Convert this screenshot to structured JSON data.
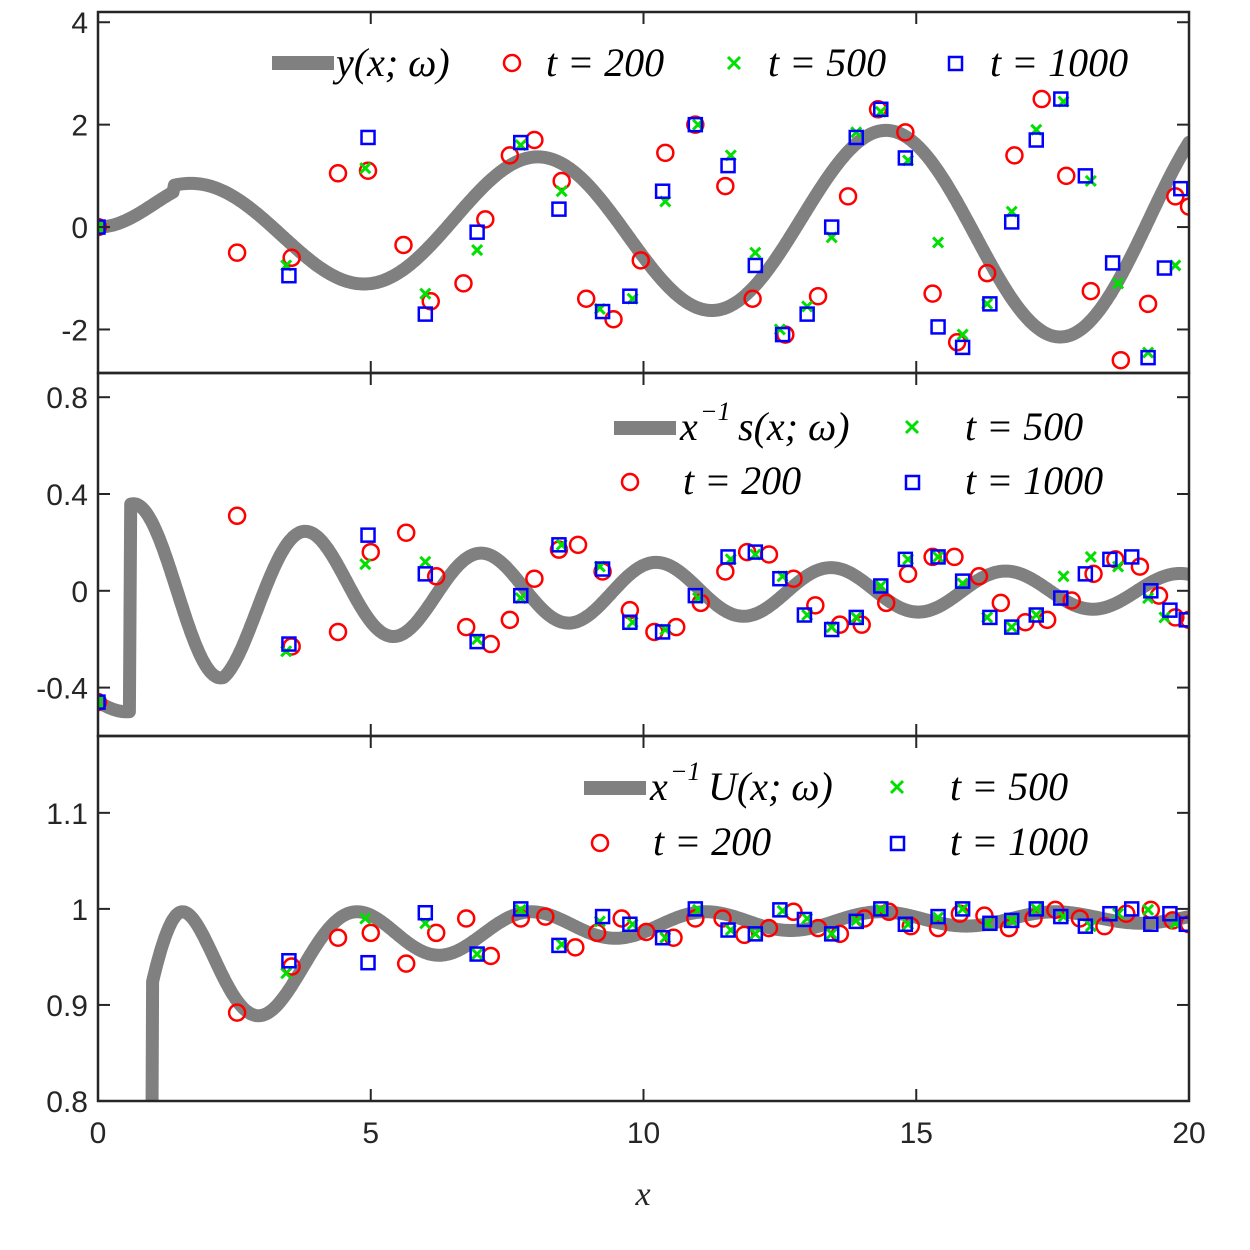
{
  "chart_data": [
    {
      "type": "line",
      "id": "top",
      "series": [
        {
          "name": "y(x;ω)",
          "kind": "line",
          "color": "#808080"
        },
        {
          "name": "t = 200",
          "kind": "circle",
          "color": "#ff0000",
          "x": [
            0,
            2.55,
            3.55,
            4.4,
            4.95,
            5.6,
            6.1,
            6.7,
            7.1,
            7.55,
            8.0,
            8.5,
            8.95,
            9.45,
            9.95,
            10.4,
            10.95,
            11.5,
            12.0,
            12.6,
            13.2,
            13.75,
            14.3,
            14.8,
            15.3,
            15.75,
            16.3,
            16.8,
            17.3,
            17.75,
            18.2,
            18.75,
            19.25,
            19.75,
            20.0
          ],
          "y": [
            0,
            -0.5,
            -0.6,
            1.05,
            1.1,
            -0.35,
            -1.45,
            -1.1,
            0.15,
            1.4,
            1.7,
            0.9,
            -1.4,
            -1.8,
            -0.65,
            1.45,
            2.0,
            0.8,
            -1.4,
            -2.1,
            -1.35,
            0.6,
            2.3,
            1.85,
            -1.3,
            -2.25,
            -0.9,
            1.4,
            2.5,
            1.0,
            -1.25,
            -2.6,
            -1.5,
            0.6,
            0.4
          ]
        },
        {
          "name": "t = 500",
          "kind": "x",
          "color": "#00e000",
          "x": [
            0,
            3.45,
            4.9,
            6.0,
            6.95,
            7.75,
            8.5,
            9.2,
            9.8,
            10.4,
            11.0,
            11.6,
            12.05,
            12.5,
            13.0,
            13.45,
            13.9,
            14.35,
            14.85,
            15.4,
            15.85,
            16.3,
            16.75,
            17.2,
            17.7,
            18.2,
            18.7,
            19.25,
            19.75
          ],
          "y": [
            0,
            -0.75,
            1.15,
            -1.3,
            -0.45,
            1.6,
            0.7,
            -1.6,
            -1.4,
            0.5,
            2.0,
            1.4,
            -0.5,
            -2.0,
            -1.55,
            -0.2,
            1.85,
            2.25,
            1.3,
            -0.3,
            -2.1,
            -1.5,
            0.3,
            1.9,
            2.45,
            0.9,
            -1.1,
            -2.45,
            -0.75
          ]
        },
        {
          "name": "t = 1000",
          "kind": "square",
          "color": "#0000ff",
          "x": [
            0,
            3.5,
            4.95,
            6.0,
            6.95,
            7.75,
            8.45,
            9.25,
            9.75,
            10.35,
            10.95,
            11.55,
            12.05,
            12.55,
            13.0,
            13.45,
            13.9,
            14.35,
            14.8,
            15.4,
            15.85,
            16.35,
            16.75,
            17.2,
            17.65,
            18.1,
            18.6,
            19.25,
            19.55,
            19.85
          ],
          "y": [
            0,
            -0.95,
            1.75,
            -1.7,
            -0.1,
            1.65,
            0.35,
            -1.65,
            -1.35,
            0.7,
            2.0,
            1.2,
            -0.75,
            -2.1,
            -1.7,
            0.0,
            1.75,
            2.3,
            1.35,
            -1.95,
            -2.35,
            -1.5,
            0.1,
            1.7,
            2.5,
            1.0,
            -0.7,
            -2.55,
            -0.8,
            0.75
          ]
        }
      ],
      "xlim": [
        0,
        20
      ],
      "ylim": [
        -2.85,
        4.2
      ],
      "yticks": [
        -2,
        0,
        2,
        4
      ],
      "ytick_labels": [
        "-2",
        "0",
        "2",
        "4"
      ],
      "legend": [
        "y(x;ω)",
        "t = 200",
        "t = 500",
        "t = 1000"
      ],
      "legend_location": "top-right"
    },
    {
      "type": "line",
      "id": "mid",
      "series": [
        {
          "name": "x⁻¹s(x;ω)",
          "kind": "line",
          "color": "#808080"
        },
        {
          "name": "t = 200",
          "kind": "circle",
          "color": "#ff0000",
          "x": [
            0,
            2.55,
            3.55,
            4.4,
            5.0,
            5.65,
            6.2,
            6.75,
            7.2,
            7.55,
            8.0,
            8.45,
            8.8,
            9.25,
            9.75,
            10.2,
            10.6,
            11.05,
            11.5,
            11.9,
            12.3,
            12.75,
            13.15,
            13.6,
            14.0,
            14.45,
            14.85,
            15.3,
            15.7,
            16.15,
            16.55,
            17.0,
            17.4,
            17.85,
            18.25,
            18.65,
            19.1,
            19.45,
            19.75,
            20.0
          ],
          "y": [
            -0.46,
            0.31,
            -0.23,
            -0.17,
            0.16,
            0.24,
            0.06,
            -0.15,
            -0.22,
            -0.12,
            0.05,
            0.17,
            0.19,
            0.08,
            -0.08,
            -0.17,
            -0.15,
            -0.05,
            0.08,
            0.16,
            0.15,
            0.05,
            -0.06,
            -0.14,
            -0.14,
            -0.05,
            0.07,
            0.14,
            0.14,
            0.06,
            -0.05,
            -0.13,
            -0.12,
            -0.04,
            0.07,
            0.13,
            0.1,
            -0.02,
            -0.11,
            -0.12
          ]
        },
        {
          "name": "t = 500",
          "kind": "x",
          "color": "#00e000",
          "x": [
            0,
            3.45,
            4.9,
            6.0,
            6.95,
            7.75,
            8.5,
            9.2,
            9.8,
            10.4,
            11.0,
            11.6,
            12.05,
            12.55,
            13.0,
            13.45,
            13.9,
            14.35,
            14.85,
            15.4,
            15.85,
            16.3,
            16.75,
            17.2,
            17.7,
            18.2,
            18.7,
            19.25,
            19.55
          ],
          "y": [
            -0.46,
            -0.25,
            0.11,
            0.12,
            -0.2,
            -0.03,
            0.19,
            0.1,
            -0.13,
            -0.16,
            -0.03,
            0.13,
            0.15,
            0.06,
            -0.1,
            -0.15,
            -0.11,
            0.02,
            0.13,
            0.14,
            0.03,
            -0.11,
            -0.15,
            -0.1,
            0.06,
            0.14,
            0.1,
            -0.03,
            -0.11
          ]
        },
        {
          "name": "t = 1000",
          "kind": "square",
          "color": "#0000ff",
          "x": [
            0,
            3.5,
            4.95,
            6.0,
            6.95,
            7.75,
            8.45,
            9.25,
            9.75,
            10.35,
            10.95,
            11.55,
            12.05,
            12.5,
            12.95,
            13.45,
            13.9,
            14.35,
            14.8,
            15.4,
            15.85,
            16.35,
            16.75,
            17.2,
            17.65,
            18.1,
            18.55,
            18.95,
            19.3,
            19.65,
            19.95
          ],
          "y": [
            -0.46,
            -0.22,
            0.23,
            0.07,
            -0.21,
            -0.02,
            0.19,
            0.09,
            -0.13,
            -0.17,
            -0.02,
            0.14,
            0.16,
            0.05,
            -0.1,
            -0.16,
            -0.11,
            0.02,
            0.13,
            0.14,
            0.04,
            -0.11,
            -0.15,
            -0.1,
            -0.03,
            0.07,
            0.13,
            0.14,
            0.0,
            -0.08,
            -0.12
          ]
        }
      ],
      "xlim": [
        0,
        20
      ],
      "ylim": [
        -0.6,
        0.9
      ],
      "yticks": [
        -0.4,
        0,
        0.4,
        0.8
      ],
      "ytick_labels": [
        "-0.4",
        "0",
        "0.4",
        "0.8"
      ],
      "legend": [
        "x⁻¹s(x;ω)",
        "t = 500",
        "t = 200",
        "t = 1000"
      ],
      "legend_location": "top-right"
    },
    {
      "type": "line",
      "id": "bot",
      "series": [
        {
          "name": "x⁻¹U(x;ω)",
          "kind": "line",
          "color": "#808080"
        },
        {
          "name": "t = 200",
          "kind": "circle",
          "color": "#ff0000",
          "x": [
            2.55,
            3.55,
            4.4,
            5.0,
            5.65,
            6.2,
            6.75,
            7.2,
            7.75,
            8.2,
            8.75,
            9.15,
            9.6,
            10.05,
            10.55,
            10.95,
            11.45,
            11.85,
            12.3,
            12.75,
            13.2,
            13.6,
            14.05,
            14.5,
            14.9,
            15.4,
            15.8,
            16.25,
            16.7,
            17.15,
            17.55,
            18.0,
            18.45,
            18.85,
            19.3,
            19.7,
            20.0
          ],
          "y": [
            0.892,
            0.94,
            0.97,
            0.975,
            0.943,
            0.975,
            0.99,
            0.951,
            0.99,
            0.992,
            0.96,
            0.975,
            0.99,
            0.976,
            0.97,
            0.99,
            0.99,
            0.973,
            0.98,
            0.997,
            0.98,
            0.974,
            0.99,
            0.997,
            0.982,
            0.98,
            0.995,
            0.993,
            0.98,
            0.99,
            0.999,
            0.99,
            0.982,
            0.995,
            0.999,
            0.988,
            0.984
          ]
        },
        {
          "name": "t = 500",
          "kind": "x",
          "color": "#00e000",
          "x": [
            3.45,
            4.9,
            6.0,
            6.95,
            7.75,
            8.5,
            9.2,
            9.8,
            10.4,
            11.0,
            11.6,
            12.05,
            12.55,
            13.0,
            13.45,
            13.9,
            14.35,
            14.85,
            15.4,
            15.85,
            16.3,
            16.75,
            17.2,
            17.7,
            18.2,
            18.7,
            19.25,
            19.75
          ],
          "y": [
            0.933,
            0.99,
            0.985,
            0.953,
            0.999,
            0.963,
            0.987,
            0.984,
            0.97,
            0.999,
            0.978,
            0.974,
            0.998,
            0.99,
            0.974,
            0.988,
            0.999,
            0.984,
            0.991,
            1.0,
            0.985,
            0.988,
            1.0,
            0.992,
            0.982,
            0.995,
            0.999,
            0.985
          ]
        },
        {
          "name": "t = 1000",
          "kind": "square",
          "color": "#0000ff",
          "x": [
            3.5,
            4.95,
            6.0,
            6.95,
            7.75,
            8.45,
            9.25,
            9.75,
            10.35,
            10.95,
            11.55,
            12.05,
            12.5,
            12.95,
            13.45,
            13.9,
            14.35,
            14.8,
            15.4,
            15.85,
            16.35,
            16.75,
            17.2,
            17.65,
            18.1,
            18.55,
            18.95,
            19.3,
            19.65,
            19.95
          ],
          "y": [
            0.946,
            0.944,
            0.996,
            0.953,
            1.0,
            0.962,
            0.992,
            0.984,
            0.97,
            1.0,
            0.978,
            0.974,
            0.999,
            0.989,
            0.974,
            0.987,
            1.0,
            0.984,
            0.992,
            1.0,
            0.985,
            0.988,
            1.0,
            0.992,
            0.982,
            0.995,
            1.0,
            0.984,
            0.995,
            0.984
          ]
        }
      ],
      "xlim": [
        0,
        20
      ],
      "ylim": [
        0.8,
        1.18
      ],
      "yticks": [
        0.8,
        0.9,
        1.0,
        1.1
      ],
      "ytick_labels": [
        "0.8",
        "0.9",
        "1",
        "1.1"
      ],
      "xticks": [
        0,
        5,
        10,
        15,
        20
      ],
      "xtick_labels": [
        "0",
        "5",
        "10",
        "15",
        "20"
      ],
      "legend": [
        "x⁻¹U(x;ω)",
        "t = 500",
        "t = 200",
        "t = 1000"
      ],
      "legend_location": "top-right"
    }
  ],
  "legends": {
    "top": {
      "line": "y(x; ω)",
      "t200": "t = 200",
      "t500": "t = 500",
      "t1000": "t = 1000"
    },
    "mid": {
      "line_sup": "−1",
      "line_base": "x",
      "line_rest": "s(x; ω)",
      "t500": "t = 500",
      "t200": "t = 200",
      "t1000": "t = 1000"
    },
    "bot": {
      "line_sup": "−1",
      "line_base": "x",
      "line_rest": "U(x; ω)",
      "t500": "t = 500",
      "t200": "t = 200",
      "t1000": "t = 1000"
    }
  },
  "xlabel": "x"
}
